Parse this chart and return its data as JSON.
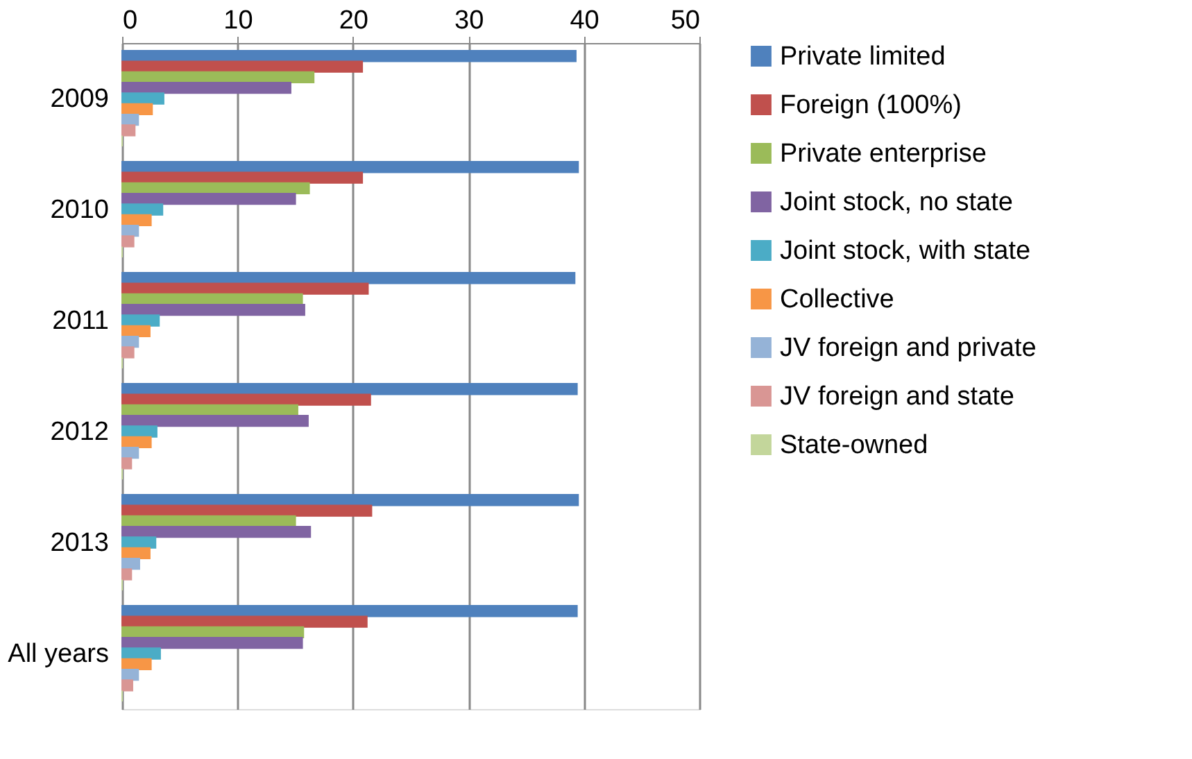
{
  "chart_data": {
    "type": "bar",
    "orientation": "horizontal",
    "categories": [
      "2009",
      "2010",
      "2011",
      "2012",
      "2013",
      "All years"
    ],
    "xlim": [
      0,
      50
    ],
    "xticks": [
      0,
      10,
      20,
      30,
      40,
      50
    ],
    "grid": "x",
    "legend": "right",
    "series": [
      {
        "name": "Private limited",
        "color": "#4f81bd",
        "values": [
          39.3,
          39.5,
          39.2,
          39.4,
          39.5,
          39.4
        ]
      },
      {
        "name": "Foreign (100%)",
        "color": "#c0504d",
        "values": [
          20.8,
          20.8,
          21.3,
          21.5,
          21.6,
          21.2
        ]
      },
      {
        "name": "Private enterprise",
        "color": "#9bbb59",
        "values": [
          16.6,
          16.2,
          15.6,
          15.2,
          15.0,
          15.7
        ]
      },
      {
        "name": "Joint stock, no state",
        "color": "#8064a2",
        "values": [
          14.6,
          15.0,
          15.8,
          16.1,
          16.3,
          15.6
        ]
      },
      {
        "name": "Joint stock, with state",
        "color": "#4bacc6",
        "values": [
          3.6,
          3.5,
          3.2,
          3.0,
          2.9,
          3.3
        ]
      },
      {
        "name": "Collective",
        "color": "#f79646",
        "values": [
          2.6,
          2.5,
          2.4,
          2.5,
          2.4,
          2.5
        ]
      },
      {
        "name": "JV foreign and private",
        "color": "#95b3d7",
        "values": [
          1.4,
          1.4,
          1.4,
          1.4,
          1.5,
          1.4
        ]
      },
      {
        "name": "JV foreign and state",
        "color": "#d99694",
        "values": [
          1.1,
          1.0,
          1.0,
          0.8,
          0.8,
          0.9
        ]
      },
      {
        "name": "State-owned",
        "color": "#c3d69b",
        "values": [
          0,
          0,
          0,
          0,
          0,
          0
        ]
      }
    ]
  }
}
